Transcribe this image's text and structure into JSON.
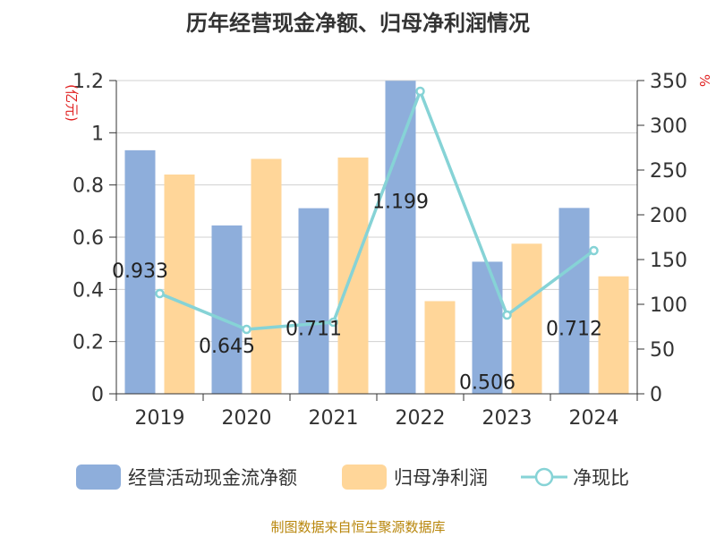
{
  "chart_data": {
    "type": "bar",
    "title": "历年经营现金净额、归母净利润情况",
    "categories": [
      "2019",
      "2020",
      "2021",
      "2022",
      "2023",
      "2024"
    ],
    "left_axis": {
      "unit": "(亿元)",
      "range": [
        0,
        1.2
      ],
      "ticks": [
        "0",
        "0.2",
        "0.4",
        "0.6",
        "0.8",
        "1",
        "1.2"
      ]
    },
    "right_axis": {
      "unit": "%",
      "range": [
        0,
        350
      ],
      "ticks": [
        "0",
        "50",
        "100",
        "150",
        "200",
        "250",
        "300",
        "350"
      ]
    },
    "series": [
      {
        "name": "经营活动现金流净额",
        "type": "bar",
        "axis": "left",
        "color": "#8eaedb",
        "values": [
          0.933,
          0.645,
          0.711,
          1.199,
          0.506,
          0.712
        ],
        "labels": [
          "0.933",
          "0.645",
          "0.711",
          "1.199",
          "0.506",
          "0.712"
        ]
      },
      {
        "name": "归母净利润",
        "type": "bar",
        "axis": "left",
        "color": "#ffd699",
        "values": [
          0.84,
          0.9,
          0.905,
          0.355,
          0.575,
          0.45
        ]
      },
      {
        "name": "净现比",
        "type": "line",
        "axis": "right",
        "color": "#86d3d6",
        "values": [
          112,
          72,
          80,
          338,
          88,
          160
        ]
      }
    ],
    "grid": true
  },
  "footer": {
    "source": "制图数据来自恒生聚源数据库"
  }
}
